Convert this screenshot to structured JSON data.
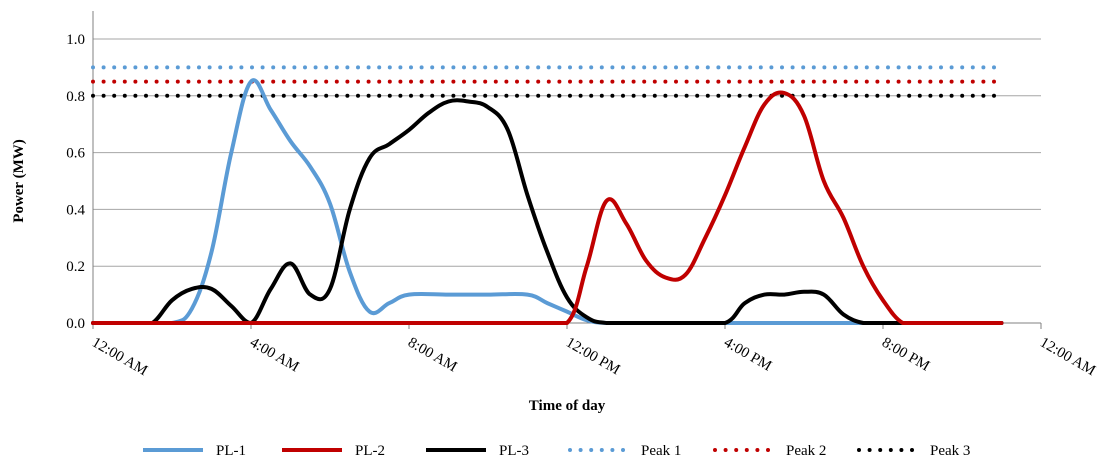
{
  "chart_data": {
    "type": "line",
    "title": "",
    "xlabel": "Time of day",
    "ylabel": "Power (MW)",
    "xlim": [
      0,
      24
    ],
    "ylim": [
      0,
      1.0
    ],
    "y_ticks": [
      "0.0",
      "0.2",
      "0.4",
      "0.6",
      "0.8",
      "1.0"
    ],
    "x_ticks": [
      "12:00 AM",
      "4:00 AM",
      "8:00 AM",
      "12:00 PM",
      "4:00 PM",
      "8:00 PM",
      "12:00 AM"
    ],
    "grid": "horizontal",
    "legend_position": "bottom",
    "series": [
      {
        "name": "PL-1",
        "style": "solid",
        "color": "#5b9bd5",
        "x": [
          0,
          1,
          2,
          2.5,
          3,
          3.5,
          4,
          4.5,
          5,
          5.5,
          6,
          6.5,
          7,
          7.5,
          8,
          9,
          10,
          11,
          11.5,
          12,
          12.5,
          13,
          14,
          16,
          18,
          20,
          21,
          22,
          23
        ],
        "y": [
          0,
          0,
          0,
          0.05,
          0.25,
          0.6,
          0.85,
          0.75,
          0.64,
          0.55,
          0.42,
          0.18,
          0.04,
          0.07,
          0.1,
          0.1,
          0.1,
          0.1,
          0.07,
          0.04,
          0.01,
          0,
          0,
          0,
          0,
          0,
          0,
          0,
          0
        ]
      },
      {
        "name": "PL-2",
        "style": "solid",
        "color": "#c00000",
        "x": [
          0,
          2,
          4,
          6,
          8,
          10,
          11,
          12,
          12.5,
          13,
          13.5,
          14,
          14.5,
          15,
          15.5,
          16,
          16.5,
          17,
          17.5,
          18,
          18.5,
          19,
          19.5,
          20,
          20.5,
          21,
          22,
          23
        ],
        "y": [
          0,
          0,
          0,
          0,
          0,
          0,
          0,
          0,
          0.2,
          0.43,
          0.35,
          0.22,
          0.16,
          0.17,
          0.3,
          0.45,
          0.62,
          0.77,
          0.81,
          0.73,
          0.5,
          0.37,
          0.2,
          0.08,
          0,
          0,
          0,
          0
        ]
      },
      {
        "name": "PL-3",
        "style": "solid",
        "color": "#000000",
        "x": [
          0,
          1,
          1.5,
          2,
          2.5,
          3,
          3.5,
          4,
          4.5,
          5,
          5.5,
          6,
          6.5,
          7,
          7.5,
          8,
          8.5,
          9,
          9.5,
          10,
          10.5,
          11,
          11.5,
          12,
          12.5,
          13,
          14,
          15,
          16,
          16.5,
          17,
          17.5,
          18,
          18.5,
          19,
          19.5,
          20,
          21,
          22,
          23
        ],
        "y": [
          0,
          0,
          0,
          0.08,
          0.12,
          0.12,
          0.06,
          0,
          0.12,
          0.21,
          0.1,
          0.12,
          0.4,
          0.58,
          0.63,
          0.68,
          0.74,
          0.78,
          0.78,
          0.76,
          0.68,
          0.45,
          0.25,
          0.09,
          0.02,
          0,
          0,
          0,
          0,
          0.07,
          0.1,
          0.1,
          0.11,
          0.1,
          0.03,
          0,
          0,
          0,
          0,
          0
        ]
      },
      {
        "name": "Peak 1",
        "style": "dotted",
        "color": "#5b9bd5",
        "x": [
          0,
          23
        ],
        "y": [
          0.9,
          0.9
        ]
      },
      {
        "name": "Peak 2",
        "style": "dotted",
        "color": "#c00000",
        "x": [
          0,
          23
        ],
        "y": [
          0.85,
          0.85
        ]
      },
      {
        "name": "Peak 3",
        "style": "dotted",
        "color": "#000000",
        "x": [
          0,
          23
        ],
        "y": [
          0.8,
          0.8
        ]
      }
    ]
  }
}
